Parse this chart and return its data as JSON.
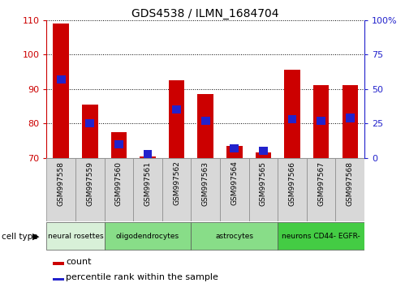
{
  "title": "GDS4538 / ILMN_1684704",
  "samples": [
    "GSM997558",
    "GSM997559",
    "GSM997560",
    "GSM997561",
    "GSM997562",
    "GSM997563",
    "GSM997564",
    "GSM997565",
    "GSM997566",
    "GSM997567",
    "GSM997568"
  ],
  "count_values": [
    109,
    85.5,
    77.5,
    70.5,
    92.5,
    88.5,
    73.5,
    71.5,
    95.5,
    91,
    91
  ],
  "percentile_values": [
    57,
    25,
    10,
    3,
    35,
    27,
    7,
    5,
    28,
    27,
    29
  ],
  "ylim_left": [
    70,
    110
  ],
  "ylim_right": [
    0,
    100
  ],
  "yticks_left": [
    70,
    80,
    90,
    100,
    110
  ],
  "yticks_right": [
    0,
    25,
    50,
    75,
    100
  ],
  "ytick_labels_right": [
    "0",
    "25",
    "50",
    "75",
    "100%"
  ],
  "bar_color": "#cc0000",
  "percentile_color": "#2222cc",
  "cell_types": [
    {
      "label": "neural rosettes",
      "start": 0,
      "end": 1,
      "color": "#d8f0d8"
    },
    {
      "label": "oligodendrocytes",
      "start": 2,
      "end": 4,
      "color": "#88dd88"
    },
    {
      "label": "astrocytes",
      "start": 5,
      "end": 7,
      "color": "#88dd88"
    },
    {
      "label": "neurons CD44- EGFR-",
      "start": 8,
      "end": 10,
      "color": "#44cc44"
    }
  ],
  "tick_color_left": "#cc0000",
  "tick_color_right": "#2222cc",
  "bar_width": 0.55,
  "gray_bg": "#d8d8d8",
  "white_bg": "#ffffff",
  "legend_red_label": "count",
  "legend_blue_label": "percentile rank within the sample",
  "cell_type_label": "cell type"
}
